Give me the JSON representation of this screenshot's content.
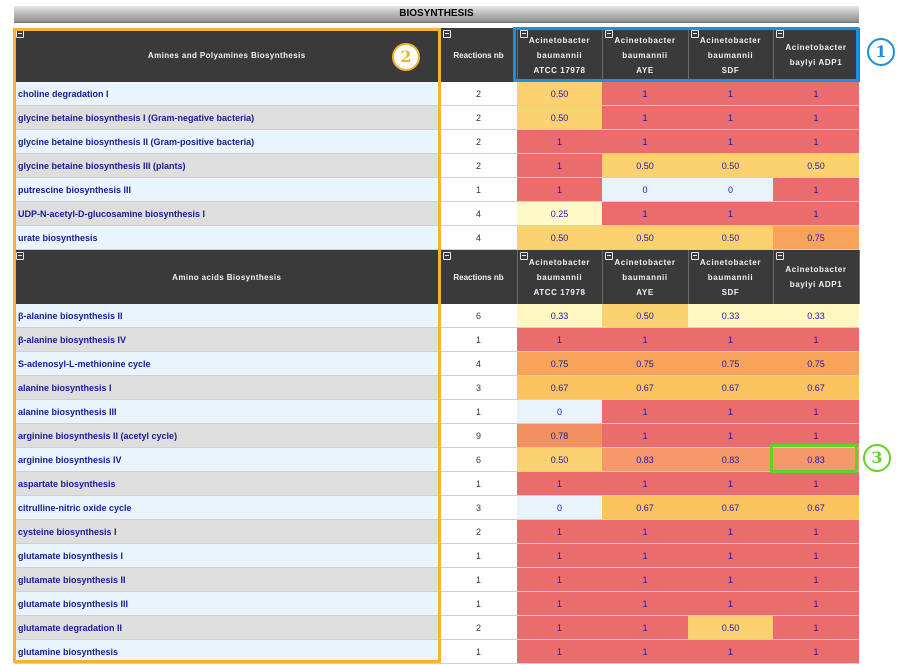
{
  "title": "BIOSYNTHESIS",
  "sections": [
    {
      "pathway_header": "Amines and Polyamines Biosynthesis",
      "reactions_header": "Reactions nb",
      "organisms": [
        {
          "l1": "Acinetobacter",
          "l2": "baumannii",
          "l3": "ATCC 17978"
        },
        {
          "l1": "Acinetobacter",
          "l2": "baumannii",
          "l3": "AYE"
        },
        {
          "l1": "Acinetobacter",
          "l2": "baumannii",
          "l3": "SDF"
        },
        {
          "l1": "Acinetobacter",
          "l2": "baylyi ADP1",
          "l3": ""
        }
      ],
      "rows": [
        {
          "name": "choline degradation I",
          "rn": "2",
          "vals": [
            "0.50",
            "1",
            "1",
            "1"
          ]
        },
        {
          "name": "glycine betaine biosynthesis I (Gram-negative bacteria)",
          "rn": "2",
          "vals": [
            "0.50",
            "1",
            "1",
            "1"
          ]
        },
        {
          "name": "glycine betaine biosynthesis II (Gram-positive bacteria)",
          "rn": "2",
          "vals": [
            "1",
            "1",
            "1",
            "1"
          ]
        },
        {
          "name": "glycine betaine biosynthesis III (plants)",
          "rn": "2",
          "vals": [
            "1",
            "0.50",
            "0.50",
            "0.50"
          ]
        },
        {
          "name": "putrescine biosynthesis III",
          "rn": "1",
          "vals": [
            "1",
            "0",
            "0",
            "1"
          ]
        },
        {
          "name": "UDP-N-acetyl-D-glucosamine biosynthesis I",
          "rn": "4",
          "vals": [
            "0.25",
            "1",
            "1",
            "1"
          ]
        },
        {
          "name": "urate biosynthesis",
          "rn": "4",
          "vals": [
            "0.50",
            "0.50",
            "0.50",
            "0.75"
          ]
        }
      ]
    },
    {
      "pathway_header": "Amino acids Biosynthesis",
      "reactions_header": "Reactions nb",
      "organisms": [
        {
          "l1": "Acinetobacter",
          "l2": "baumannii",
          "l3": "ATCC 17978"
        },
        {
          "l1": "Acinetobacter",
          "l2": "baumannii",
          "l3": "AYE"
        },
        {
          "l1": "Acinetobacter",
          "l2": "baumannii",
          "l3": "SDF"
        },
        {
          "l1": "Acinetobacter",
          "l2": "baylyi ADP1",
          "l3": ""
        }
      ],
      "rows": [
        {
          "name": "β-alanine biosynthesis II",
          "rn": "6",
          "vals": [
            "0.33",
            "0.50",
            "0.33",
            "0.33"
          ]
        },
        {
          "name": "β-alanine biosynthesis IV",
          "rn": "1",
          "vals": [
            "1",
            "1",
            "1",
            "1"
          ]
        },
        {
          "name": "S-adenosyl-L-methionine cycle",
          "rn": "4",
          "vals": [
            "0.75",
            "0.75",
            "0.75",
            "0.75"
          ]
        },
        {
          "name": "alanine biosynthesis I",
          "rn": "3",
          "vals": [
            "0.67",
            "0.67",
            "0.67",
            "0.67"
          ]
        },
        {
          "name": "alanine biosynthesis III",
          "rn": "1",
          "vals": [
            "0",
            "1",
            "1",
            "1"
          ]
        },
        {
          "name": "arginine biosynthesis II (acetyl cycle)",
          "rn": "9",
          "vals": [
            "0.78",
            "1",
            "1",
            "1"
          ]
        },
        {
          "name": "arginine biosynthesis IV",
          "rn": "6",
          "vals": [
            "0.50",
            "0.83",
            "0.83",
            "0.83"
          ]
        },
        {
          "name": "aspartate biosynthesis",
          "rn": "1",
          "vals": [
            "1",
            "1",
            "1",
            "1"
          ]
        },
        {
          "name": "citrulline-nitric oxide cycle",
          "rn": "3",
          "vals": [
            "0",
            "0.67",
            "0.67",
            "0.67"
          ]
        },
        {
          "name": "cysteine biosynthesis I",
          "rn": "2",
          "vals": [
            "1",
            "1",
            "1",
            "1"
          ]
        },
        {
          "name": "glutamate biosynthesis I",
          "rn": "1",
          "vals": [
            "1",
            "1",
            "1",
            "1"
          ]
        },
        {
          "name": "glutamate biosynthesis II",
          "rn": "1",
          "vals": [
            "1",
            "1",
            "1",
            "1"
          ]
        },
        {
          "name": "glutamate biosynthesis III",
          "rn": "1",
          "vals": [
            "1",
            "1",
            "1",
            "1"
          ]
        },
        {
          "name": "glutamate degradation II",
          "rn": "2",
          "vals": [
            "1",
            "1",
            "0.50",
            "1"
          ]
        },
        {
          "name": "glutamine biosynthesis",
          "rn": "1",
          "vals": [
            "1",
            "1",
            "1",
            "1"
          ]
        }
      ]
    }
  ],
  "annotations": {
    "blue": "1",
    "orange": "2",
    "green": "3"
  },
  "colors": {
    "header_bg": "#3a3a3a",
    "v_1": "#eb6c6c",
    "v_0.83": "#f5996a",
    "v_0.78": "#f39062",
    "v_0.75": "#f7a35c",
    "v_0.67": "#fac35e",
    "v_0.50": "#fcd170",
    "v_0.33": "#fff7c0",
    "v_0.25": "#fff9c8",
    "v_0": "#e7f2fb",
    "annot_blue": "#1e8fe0",
    "annot_orange": "#f7b32b",
    "annot_green": "#5fd32a"
  },
  "icons": {
    "column_header": "collapse-box-icon"
  }
}
